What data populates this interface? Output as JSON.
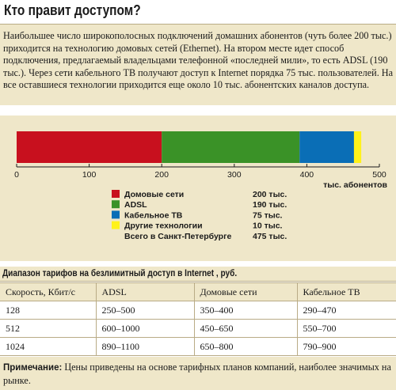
{
  "title": "Кто правит доступом?",
  "intro": "Наибольшее число широкополосных подключений домашних абонентов (чуть более 200 тыс.) приходится на технологию домовых сетей (Ethernet). На втором месте идет способ подключения, предлагаемый владельцами телефонной «последней мили», то есть ADSL (190 тыс.). Через сети кабельного ТВ получают доступ к Internet порядка 75 тыс. пользователей. На все оставшиеся технологии приходится еще около 10 тыс. абонентских каналов доступа.",
  "chart_data": {
    "type": "bar",
    "orientation": "horizontal",
    "stacked": true,
    "xlabel": "тыс. абонентов",
    "xlim": [
      0,
      500
    ],
    "xticks": [
      0,
      100,
      200,
      300,
      400,
      500
    ],
    "series": [
      {
        "name": "Домовые сети",
        "value": 200,
        "label": "200 тыс.",
        "color": "#c8101e"
      },
      {
        "name": "ADSL",
        "value": 190,
        "label": "190 тыс.",
        "color": "#3a9227"
      },
      {
        "name": "Кабельное ТВ",
        "value": 75,
        "label": "75 тыс.",
        "color": "#0a6eb6"
      },
      {
        "name": "Другие технологии",
        "value": 10,
        "label": "10 тыс.",
        "color": "#fff21a"
      }
    ],
    "total": {
      "name": "Всего в Санкт-Петербурге",
      "value": 475,
      "label": "475 тыс."
    }
  },
  "table": {
    "caption": "Диапазон тарифов на безлимитный доступ в Internet , руб.",
    "headers": [
      "Скорость, Кбит/с",
      "ADSL",
      "Домовые сети",
      "Кабельное ТВ"
    ],
    "rows": [
      [
        "128",
        "250–500",
        "350–400",
        "290–470"
      ],
      [
        "512",
        "600–1000",
        "450–650",
        "550–700"
      ],
      [
        "1024",
        "890–1100",
        "650–800",
        "790–900"
      ]
    ]
  },
  "note": {
    "label": "Примечание:",
    "text": " Цены приведены на основе тарифных планов компаний, наиболее значимых на рынке."
  }
}
